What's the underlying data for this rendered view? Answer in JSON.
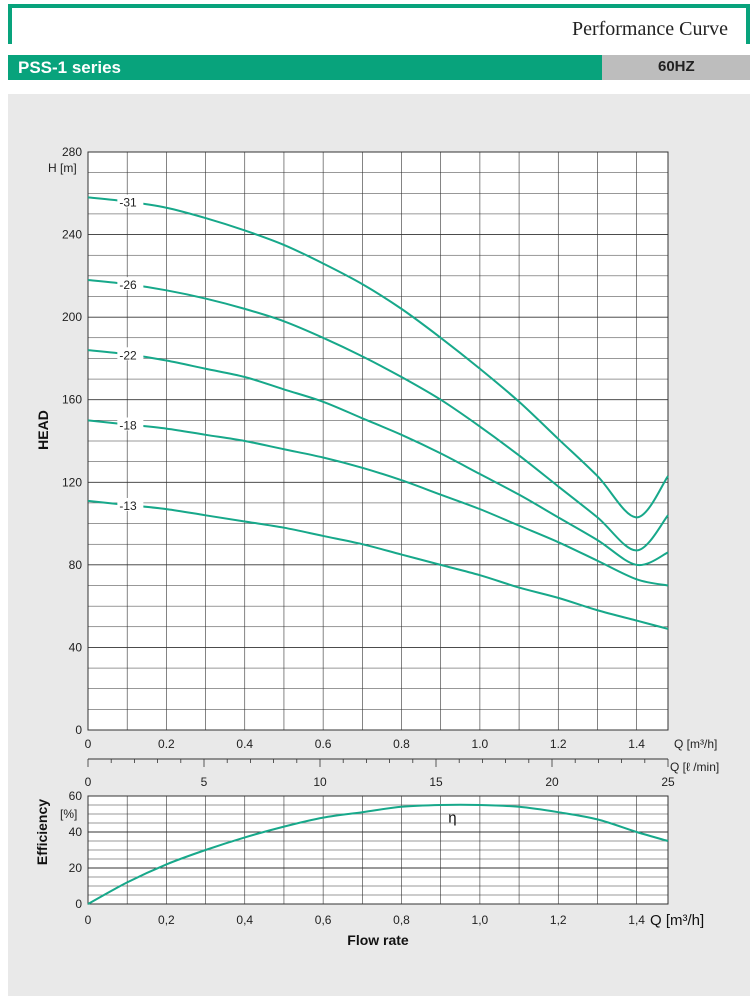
{
  "header": {
    "doc_title": "Performance Curve",
    "series_label": "PSS-1 series",
    "frequency_label": "60HZ"
  },
  "colors": {
    "brand": "#08a37c",
    "curve": "#17a88a",
    "grid": "#333333",
    "panel": "#e9e9e9",
    "hz_bar": "#bdbdbd"
  },
  "chart_data": [
    {
      "type": "line",
      "ylabel": "HEAD",
      "yunit": "H [m]",
      "xunit": "Q [m³/h]",
      "xunit2": "Q [ℓ /min]",
      "xlim": [
        0,
        1.48
      ],
      "ylim": [
        0,
        280
      ],
      "x2lim": [
        0,
        25
      ],
      "xticks": [
        "0",
        "0.2",
        "0.4",
        "0.6",
        "0.8",
        "1.0",
        "1.2",
        "1.4"
      ],
      "x2ticks": [
        "0",
        "5",
        "10",
        "15",
        "20",
        "25"
      ],
      "yticks": [
        "0",
        "40",
        "80",
        "120",
        "160",
        "200",
        "240",
        "280"
      ],
      "grid": true,
      "series": [
        {
          "name": "31",
          "x": [
            0,
            0.1,
            0.2,
            0.3,
            0.4,
            0.5,
            0.6,
            0.7,
            0.8,
            0.9,
            1.0,
            1.1,
            1.2,
            1.3,
            1.4,
            1.48
          ],
          "y": [
            258,
            256,
            253,
            248,
            242,
            235,
            226,
            216,
            204,
            190,
            175,
            159,
            141,
            123,
            103,
            123
          ]
        },
        {
          "name": "26",
          "x": [
            0,
            0.1,
            0.2,
            0.3,
            0.4,
            0.5,
            0.6,
            0.7,
            0.8,
            0.9,
            1.0,
            1.1,
            1.2,
            1.3,
            1.4,
            1.48
          ],
          "y": [
            218,
            216,
            213,
            209,
            204,
            198,
            190,
            181,
            171,
            160,
            147,
            133,
            118,
            103,
            87,
            104
          ]
        },
        {
          "name": "22",
          "x": [
            0,
            0.1,
            0.2,
            0.3,
            0.4,
            0.5,
            0.6,
            0.7,
            0.8,
            0.9,
            1.0,
            1.1,
            1.2,
            1.3,
            1.4,
            1.48
          ],
          "y": [
            184,
            182,
            179,
            175,
            171,
            165,
            159,
            151,
            143,
            134,
            124,
            114,
            103,
            92,
            80,
            86
          ]
        },
        {
          "name": "18",
          "x": [
            0,
            0.1,
            0.2,
            0.3,
            0.4,
            0.5,
            0.6,
            0.7,
            0.8,
            0.9,
            1.0,
            1.1,
            1.2,
            1.3,
            1.4,
            1.48
          ],
          "y": [
            150,
            148,
            146,
            143,
            140,
            136,
            132,
            127,
            121,
            114,
            107,
            99,
            91,
            82,
            73,
            70
          ]
        },
        {
          "name": "13",
          "x": [
            0,
            0.1,
            0.2,
            0.3,
            0.4,
            0.5,
            0.6,
            0.7,
            0.8,
            0.9,
            1.0,
            1.1,
            1.2,
            1.3,
            1.4,
            1.48
          ],
          "y": [
            111,
            109,
            107,
            104,
            101,
            98,
            94,
            90,
            85,
            80,
            75,
            69,
            64,
            58,
            53,
            49
          ]
        }
      ]
    },
    {
      "type": "line",
      "ylabel": "Efficiency",
      "yunit": "[%]",
      "xlabel": "Flow rate",
      "xunit": "Q [m³/h]",
      "xlim": [
        0,
        1.48
      ],
      "ylim": [
        0,
        60
      ],
      "xticks": [
        "0",
        "0,2",
        "0,4",
        "0,6",
        "0,8",
        "1,0",
        "1,2",
        "1,4"
      ],
      "yticks": [
        "0",
        "20",
        "40",
        "60"
      ],
      "grid": true,
      "series": [
        {
          "name": "η",
          "x": [
            0,
            0.1,
            0.2,
            0.3,
            0.4,
            0.5,
            0.6,
            0.7,
            0.8,
            0.9,
            1.0,
            1.1,
            1.2,
            1.3,
            1.4,
            1.48
          ],
          "y": [
            0,
            12,
            22,
            30,
            37,
            43,
            48,
            51,
            54,
            55,
            55,
            54,
            51,
            47,
            40,
            35
          ]
        }
      ]
    }
  ]
}
